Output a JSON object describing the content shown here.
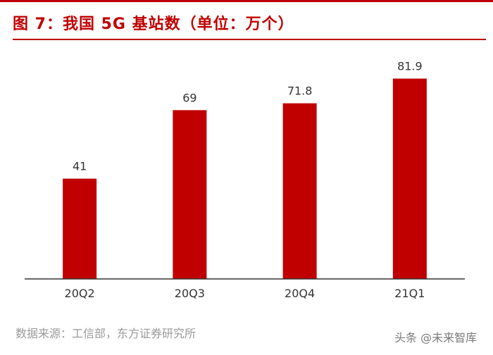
{
  "colors": {
    "accent": "#c00000",
    "axis": "#333333",
    "text": "#333333"
  },
  "header": {
    "title": "图 7：我国 5G 基站数（单位：万个）"
  },
  "chart_data": {
    "type": "bar",
    "title": "我国 5G 基站数（单位：万个）",
    "categories": [
      "20Q2",
      "20Q3",
      "20Q4",
      "21Q1"
    ],
    "values": [
      41,
      69,
      71.8,
      81.9
    ],
    "data_labels": [
      "41",
      "69",
      "71.8",
      "81.9"
    ],
    "xlabel": "",
    "ylabel": "",
    "ylim": [
      0,
      100
    ],
    "grid": false,
    "legend": "none"
  },
  "footer": {
    "source": "数据来源：工信部，东方证券研究所",
    "watermark": "头条 @未来智库"
  }
}
